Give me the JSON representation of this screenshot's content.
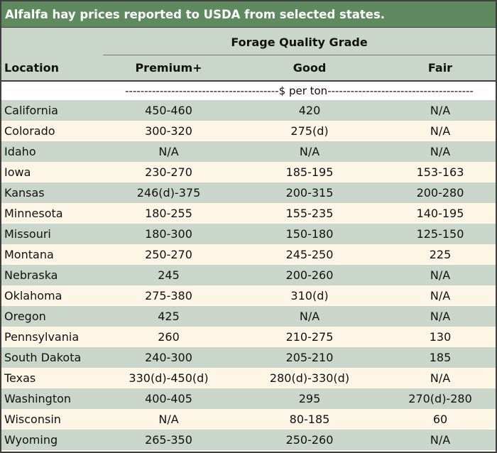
{
  "title": "Alfalfa hay prices reported to USDA from selected states.",
  "header": {
    "group_label": "Forage Quality Grade",
    "location": "Location",
    "premium": "Premium+",
    "good": "Good",
    "fair": "Fair"
  },
  "units": "----------------------------------------$ per ton--------------------------------------",
  "rows": [
    {
      "location": "California",
      "premium": "450-460",
      "good": "420",
      "fair": "N/A"
    },
    {
      "location": "Colorado",
      "premium": "300-320",
      "good": "275(d)",
      "fair": "N/A"
    },
    {
      "location": "Idaho",
      "premium": "N/A",
      "good": "N/A",
      "fair": "N/A"
    },
    {
      "location": "Iowa",
      "premium": "230-270",
      "good": "185-195",
      "fair": "153-163"
    },
    {
      "location": "Kansas",
      "premium": "246(d)-375",
      "good": "200-315",
      "fair": "200-280"
    },
    {
      "location": "Minnesota",
      "premium": "180-255",
      "good": "155-235",
      "fair": "140-195"
    },
    {
      "location": "Missouri",
      "premium": "180-300",
      "good": "150-180",
      "fair": "125-150"
    },
    {
      "location": "Montana",
      "premium": "250-270",
      "good": "245-250",
      "fair": "225"
    },
    {
      "location": "Nebraska",
      "premium": "245",
      "good": "200-260",
      "fair": "N/A"
    },
    {
      "location": "Oklahoma",
      "premium": "275-380",
      "good": "310(d)",
      "fair": "N/A"
    },
    {
      "location": "Oregon",
      "premium": "425",
      "good": "N/A",
      "fair": "N/A"
    },
    {
      "location": "Pennsylvania",
      "premium": "260",
      "good": "210-275",
      "fair": "130"
    },
    {
      "location": "South Dakota",
      "premium": "240-300",
      "good": "205-210",
      "fair": "185"
    },
    {
      "location": "Texas",
      "premium": "330(d)-450(d)",
      "good": "280(d)-330(d)",
      "fair": "N/A"
    },
    {
      "location": "Washington",
      "premium": "400-405",
      "good": "295",
      "fair": "270(d)-280"
    },
    {
      "location": "Wisconsin",
      "premium": "N/A",
      "good": "80-185",
      "fair": "60"
    },
    {
      "location": "Wyoming",
      "premium": "265-350",
      "good": "250-260",
      "fair": "N/A"
    }
  ],
  "colors": {
    "title_bg": "#5f8a5f",
    "shade_row": "#c9d6c9",
    "light_row": "#fdf5e6"
  }
}
